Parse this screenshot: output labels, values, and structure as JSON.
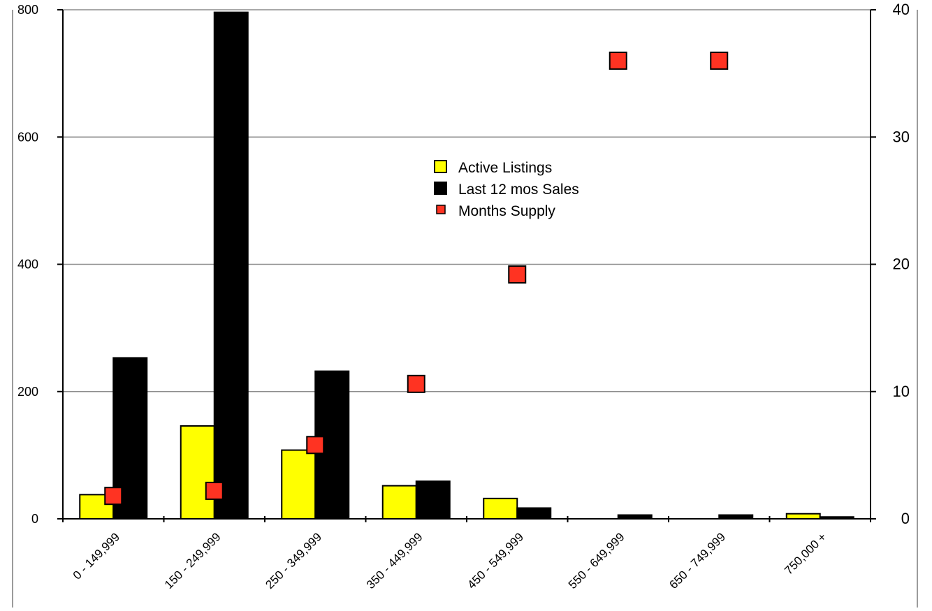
{
  "chart_data": {
    "type": "bar",
    "categories": [
      "0 - 149,999",
      "150 - 249,999",
      "250 - 349,999",
      "350 - 449,999",
      "450 - 549,999",
      "550 - 649,999",
      "650 - 749,999",
      "750,000 +"
    ],
    "series": [
      {
        "name": "Active Listings",
        "axis": "left",
        "type": "bar",
        "color": "#ffff00",
        "values": [
          38,
          146,
          108,
          52,
          32,
          0,
          0,
          8
        ]
      },
      {
        "name": "Last 12 mos Sales",
        "axis": "left",
        "type": "bar",
        "color": "#000000",
        "values": [
          253,
          796,
          232,
          59,
          17,
          6,
          6,
          3
        ]
      },
      {
        "name": "Months Supply",
        "axis": "right",
        "type": "scatter",
        "color": "#ff3322",
        "values": [
          1.8,
          2.2,
          5.8,
          10.6,
          19.2,
          36,
          36,
          null
        ]
      }
    ],
    "y_left": {
      "min": 0,
      "max": 800,
      "ticks": [
        "0",
        "200",
        "400",
        "600",
        "800"
      ]
    },
    "y_right": {
      "min": 0,
      "max": 40,
      "ticks": [
        "0",
        "10",
        "20",
        "30",
        "40"
      ]
    },
    "grid": true,
    "legend_position": "center",
    "title": "",
    "xlabel": "",
    "ylabel": ""
  }
}
